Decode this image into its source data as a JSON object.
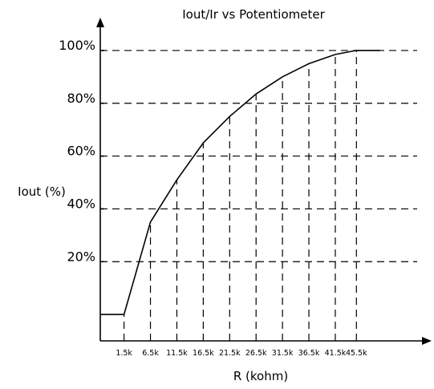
{
  "chart_data": {
    "type": "line",
    "title": "Iout/Ir vs Potentiometer",
    "xlabel": "R (kohm)",
    "ylabel": "Iout (%)",
    "x_categories": [
      "1.5k",
      "6.5k",
      "11.5k",
      "16.5k",
      "21.5k",
      "26.5k",
      "31.5k",
      "36.5k",
      "41.5k",
      "45.5k"
    ],
    "y_ticks": [
      "20%",
      "40%",
      "60%",
      "80%",
      "100%"
    ],
    "y_tick_values": [
      20,
      40,
      60,
      80,
      100
    ],
    "xlim": [
      -3,
      57
    ],
    "ylim": [
      -10,
      110
    ],
    "grid": true,
    "series": [
      {
        "x": [
          -3,
          1.5,
          6.5,
          11.5,
          16.5,
          21.5,
          26.5,
          31.5,
          36.5,
          41.5,
          45.5,
          50
        ],
        "y": [
          0,
          0,
          35,
          51,
          65,
          75,
          83.5,
          90,
          95,
          98.5,
          100,
          100
        ]
      }
    ]
  }
}
